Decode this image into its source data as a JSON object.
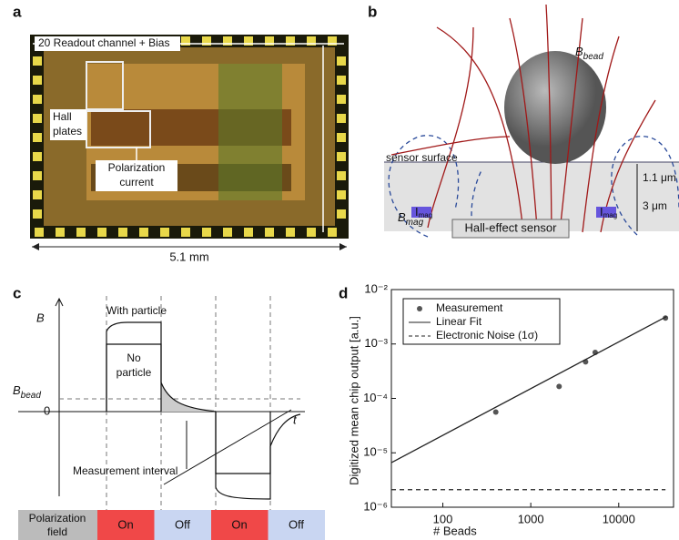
{
  "panels": {
    "a": {
      "label": "a",
      "width_label": "20 Readout channel + Bias",
      "hall": [
        "Hall",
        "plates"
      ],
      "polarization": [
        "Polarization",
        "current"
      ],
      "size": "5.1 mm"
    },
    "b": {
      "label": "b",
      "b_bead": {
        "main": "B",
        "sub": "bead"
      },
      "surface": "sensor surface",
      "depth1": "1.1 μm",
      "depth2": "3 μm",
      "b_mag": {
        "main": "B",
        "sub": "mag"
      },
      "i_mag": {
        "main": "I",
        "sub": "mag"
      },
      "sensor": "Hall-effect sensor"
    },
    "c": {
      "label": "c",
      "y_axis": "B",
      "with_particle": "With particle",
      "no_particle": [
        "No",
        "particle"
      ],
      "b_bead": {
        "main": "B",
        "sub": "bead"
      },
      "zero": "0",
      "t_axis": "t",
      "interval": "Measurement interval",
      "field": [
        "Polarization",
        "field"
      ],
      "states": [
        "On",
        "Off",
        "On",
        "Off"
      ]
    },
    "d": {
      "label": "d"
    }
  },
  "chart_data": {
    "type": "scatter",
    "x_label": "# Beads",
    "y_label": "Digitized mean chip output [a.u.]",
    "log_x": true,
    "log_y": true,
    "xlim": [
      26,
      42000
    ],
    "ylim": [
      1e-06,
      0.01
    ],
    "xticks": [
      100,
      1000,
      10000
    ],
    "yticks": [
      {
        "value": 1e-06,
        "label": "10⁻⁶"
      },
      {
        "value": 1e-05,
        "label": "10⁻⁵"
      },
      {
        "value": 0.0001,
        "label": "10⁻⁴"
      },
      {
        "value": 0.001,
        "label": "10⁻³"
      },
      {
        "value": 0.01,
        "label": "10⁻²"
      }
    ],
    "legend": "upper left",
    "series": [
      {
        "name": "Measurement",
        "style": "marker",
        "color": "#555555",
        "x": [
          400,
          2100,
          4200,
          5400,
          34000
        ],
        "values": [
          5.6e-05,
          0.000166,
          0.00047,
          0.0007,
          0.003
        ]
      },
      {
        "name": "Linear Fit",
        "style": "line",
        "color": "#222222",
        "x": [
          26,
          35000
        ],
        "values": [
          6.6e-06,
          0.0032
        ]
      },
      {
        "name": "Electronic Noise (1σ)",
        "style": "dashed",
        "color": "#222222",
        "x": [
          26,
          34000
        ],
        "values": [
          2.1e-06,
          2.1e-06
        ]
      }
    ]
  }
}
